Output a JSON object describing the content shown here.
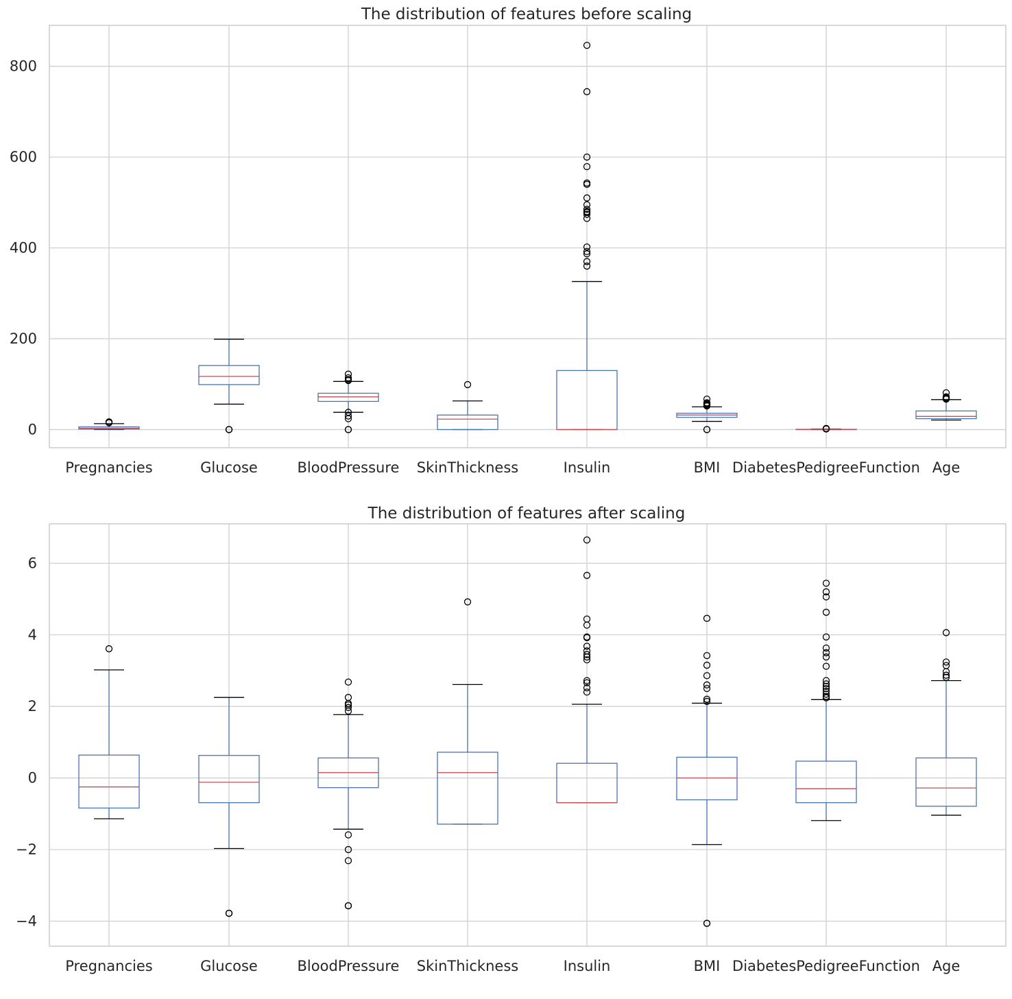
{
  "chart_data": [
    {
      "type": "box",
      "title": "The distribution of features before scaling",
      "categories": [
        "Pregnancies",
        "Glucose",
        "BloodPressure",
        "SkinThickness",
        "Insulin",
        "BMI",
        "DiabetesPedigreeFunction",
        "Age"
      ],
      "ylim": [
        -40,
        890
      ],
      "yticks": [
        0,
        200,
        400,
        600,
        800
      ],
      "ytick_labels": [
        "0",
        "200",
        "400",
        "600",
        "800"
      ],
      "grid": true,
      "boxes": [
        {
          "whislo": 0,
          "q1": 1,
          "med": 3,
          "q3": 6,
          "whishi": 13,
          "fliers": [
            15,
            17
          ]
        },
        {
          "whislo": 56,
          "q1": 99,
          "med": 117,
          "q3": 141,
          "whishi": 199,
          "fliers": [
            0,
            0,
            0
          ]
        },
        {
          "whislo": 38,
          "q1": 62,
          "med": 72,
          "q3": 80,
          "whishi": 106,
          "fliers": [
            0,
            0,
            24,
            30,
            38,
            108,
            110,
            114,
            122
          ]
        },
        {
          "whislo": 0,
          "q1": 0,
          "med": 23,
          "q3": 32,
          "whishi": 63,
          "fliers": [
            99
          ]
        },
        {
          "whislo": 0,
          "q1": 0,
          "med": 0,
          "q3": 130,
          "whishi": 326,
          "fliers": [
            360,
            370,
            387,
            392,
            402,
            465,
            474,
            478,
            480,
            485,
            495,
            510,
            540,
            543,
            579,
            600,
            744,
            846
          ]
        },
        {
          "whislo": 18,
          "q1": 27,
          "med": 32,
          "q3": 36,
          "whishi": 50,
          "fliers": [
            0,
            0,
            52,
            53,
            55,
            57,
            59,
            67
          ]
        },
        {
          "whislo": 0.08,
          "q1": 0.24,
          "med": 0.37,
          "q3": 0.63,
          "whishi": 1.19,
          "fliers": [
            1.3,
            1.6,
            2.1,
            2.4
          ]
        },
        {
          "whislo": 21,
          "q1": 24,
          "med": 29,
          "q3": 41,
          "whishi": 66,
          "fliers": [
            67,
            68,
            69,
            70,
            72,
            81
          ]
        }
      ]
    },
    {
      "type": "box",
      "title": "The distribution of features after scaling",
      "categories": [
        "Pregnancies",
        "Glucose",
        "BloodPressure",
        "SkinThickness",
        "Insulin",
        "BMI",
        "DiabetesPedigreeFunction",
        "Age"
      ],
      "ylim": [
        -4.7,
        7.1
      ],
      "yticks": [
        -4,
        -2,
        0,
        2,
        4,
        6
      ],
      "ytick_labels": [
        "−4",
        "−2",
        "0",
        "2",
        "4",
        "6"
      ],
      "grid": true,
      "boxes": [
        {
          "whislo": -1.14,
          "q1": -0.84,
          "med": -0.25,
          "q3": 0.64,
          "whishi": 3.02,
          "fliers": [
            3.61
          ]
        },
        {
          "whislo": -1.97,
          "q1": -0.69,
          "med": -0.12,
          "q3": 0.63,
          "whishi": 2.25,
          "fliers": [
            -3.78,
            -3.78,
            -3.78
          ]
        },
        {
          "whislo": -1.43,
          "q1": -0.27,
          "med": 0.15,
          "q3": 0.56,
          "whishi": 1.77,
          "fliers": [
            -3.57,
            -3.57,
            -3.57,
            -2.31,
            -2.0,
            -1.59,
            1.87,
            1.97,
            2.04,
            2.08,
            2.25,
            2.68
          ]
        },
        {
          "whislo": -1.29,
          "q1": -1.29,
          "med": 0.15,
          "q3": 0.72,
          "whishi": 2.61,
          "fliers": [
            4.92
          ]
        },
        {
          "whislo": -0.69,
          "q1": -0.69,
          "med": -0.69,
          "q3": 0.41,
          "whishi": 2.06,
          "fliers": [
            2.4,
            2.52,
            2.66,
            2.72,
            3.3,
            3.38,
            3.45,
            3.55,
            3.68,
            3.92,
            3.94,
            4.27,
            4.44,
            5.66,
            6.65
          ]
        },
        {
          "whislo": -1.86,
          "q1": -0.61,
          "med": 0.0,
          "q3": 0.58,
          "whishi": 2.09,
          "fliers": [
            -4.06,
            -4.06,
            2.14,
            2.2,
            2.5,
            2.6,
            2.86,
            3.15,
            3.42,
            4.46
          ]
        },
        {
          "whislo": -1.19,
          "q1": -0.69,
          "med": -0.3,
          "q3": 0.47,
          "whishi": 2.19,
          "fliers": [
            2.24,
            2.28,
            2.34,
            2.42,
            2.5,
            2.56,
            2.63,
            2.72,
            3.12,
            3.38,
            3.5,
            3.63,
            3.94,
            4.63,
            5.06,
            5.2,
            5.44
          ]
        },
        {
          "whislo": -1.04,
          "q1": -0.79,
          "med": -0.28,
          "q3": 0.56,
          "whishi": 2.72,
          "fliers": [
            2.81,
            2.87,
            2.97,
            3.14,
            3.24,
            4.06
          ]
        }
      ]
    }
  ]
}
